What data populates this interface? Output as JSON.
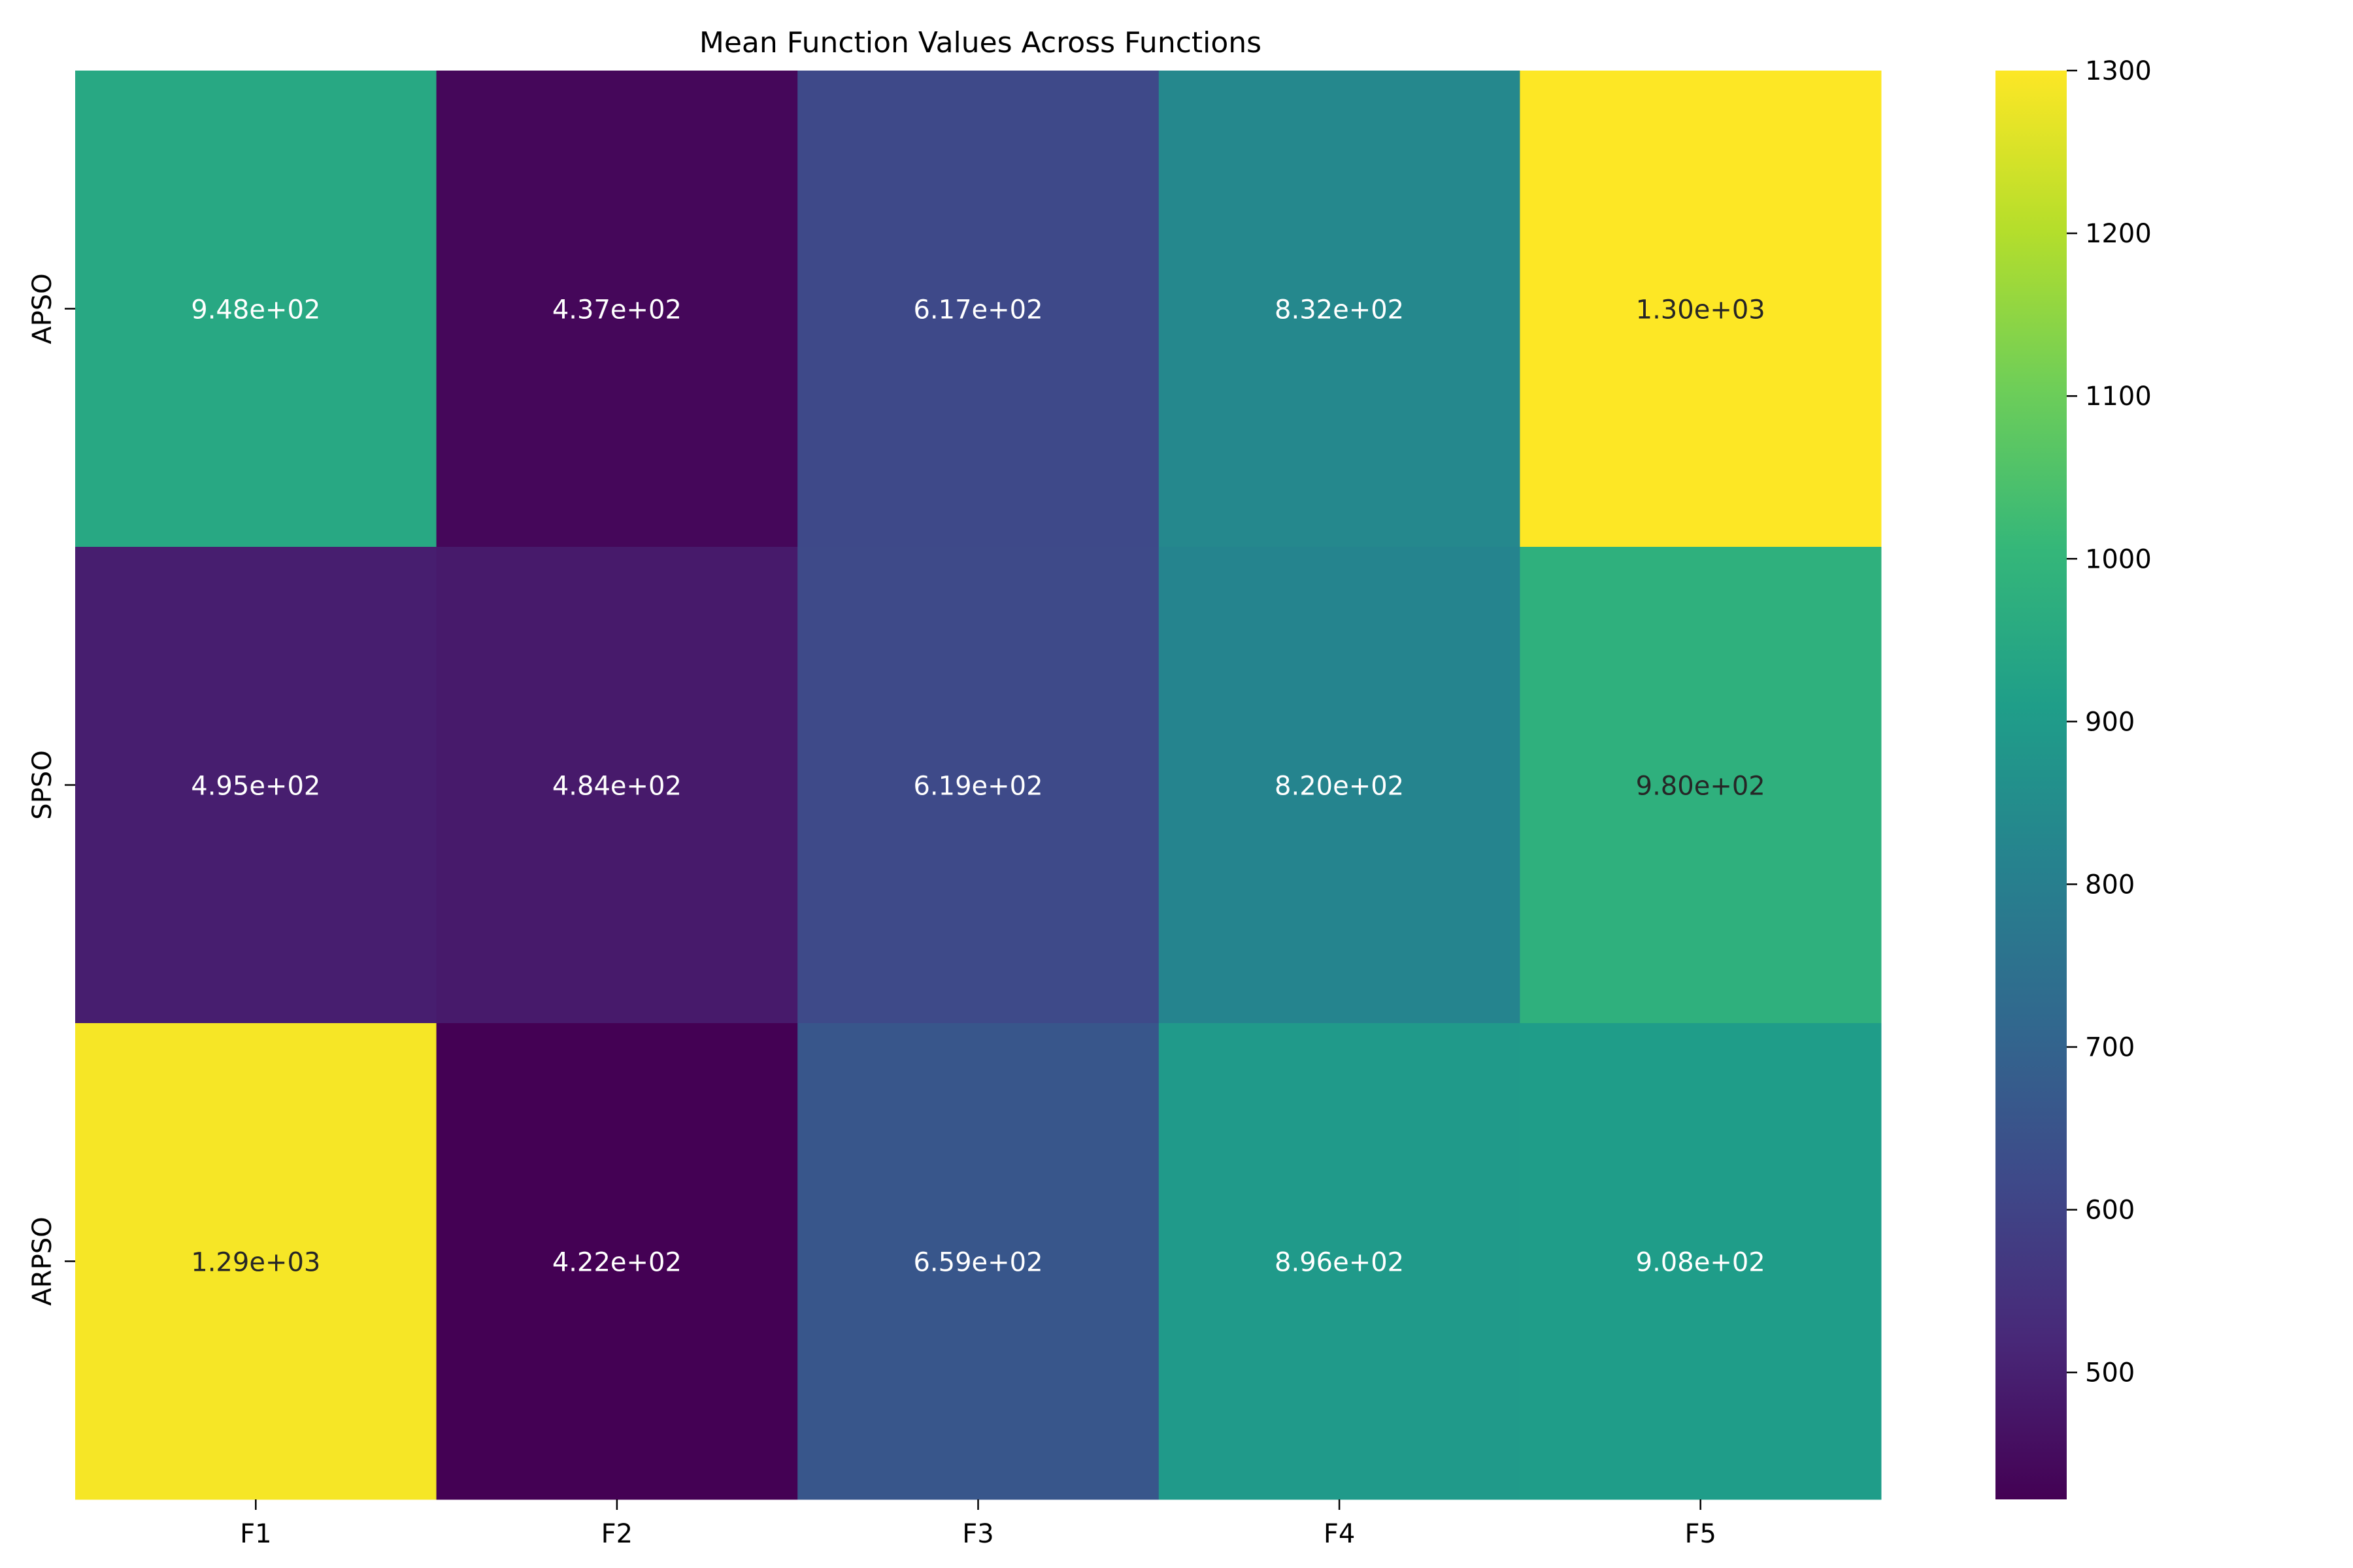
{
  "chart_data": {
    "type": "heatmap",
    "title": "Mean Function Values Across Functions",
    "xlabel": "",
    "ylabel": "",
    "columns": [
      "F1",
      "F2",
      "F3",
      "F4",
      "F5"
    ],
    "rows": [
      "APSO",
      "SPSO",
      "ARPSO"
    ],
    "values": [
      [
        948,
        437,
        617,
        832,
        1300
      ],
      [
        495,
        484,
        619,
        820,
        980
      ],
      [
        1290,
        422,
        659,
        896,
        908
      ]
    ],
    "annotations": [
      [
        "9.48e+02",
        "4.37e+02",
        "6.17e+02",
        "8.32e+02",
        "1.30e+03"
      ],
      [
        "4.95e+02",
        "4.84e+02",
        "6.19e+02",
        "8.20e+02",
        "9.80e+02"
      ],
      [
        "1.29e+03",
        "4.22e+02",
        "6.59e+02",
        "8.96e+02",
        "9.08e+02"
      ]
    ],
    "colormap": "viridis",
    "colorbar": {
      "range": [
        422,
        1300
      ],
      "ticks": [
        500,
        600,
        700,
        800,
        900,
        1000,
        1100,
        1200,
        1300
      ]
    },
    "grid": false,
    "legend": "colorbar-right"
  }
}
